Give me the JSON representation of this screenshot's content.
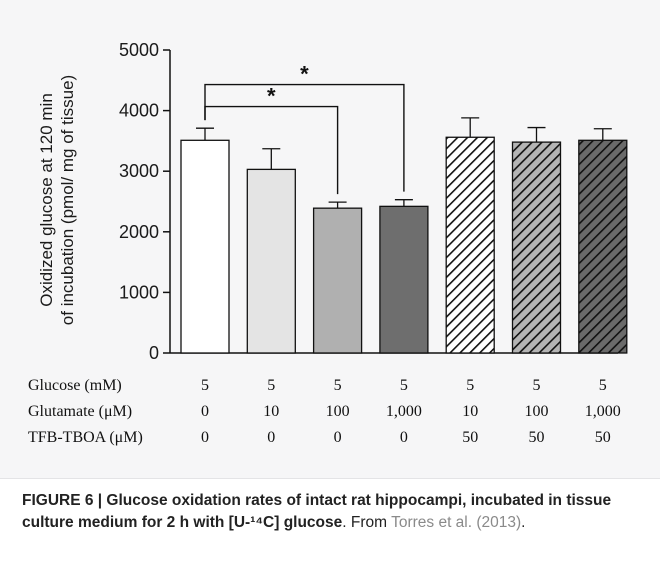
{
  "chart_data": {
    "type": "bar",
    "ylabel_line1": "Oxidized glucose at 120 min",
    "ylabel_line2": "of incubation (pmol/ mg of tissue)",
    "ylim": [
      0,
      5000
    ],
    "yticks": [
      0,
      1000,
      2000,
      3000,
      4000,
      5000
    ],
    "values": [
      3510,
      3030,
      2390,
      2420,
      3560,
      3480,
      3510
    ],
    "errors": [
      200,
      340,
      100,
      110,
      320,
      240,
      190
    ],
    "fills": [
      "#ffffff",
      "#e4e4e4",
      "#b0b0b0",
      "#6e6e6e",
      "hatch-white",
      "hatch-light",
      "hatch-dark"
    ],
    "significance": [
      {
        "from": 0,
        "to": 2,
        "label": "*"
      },
      {
        "from": 0,
        "to": 3,
        "label": "*"
      }
    ],
    "conditions": [
      {
        "label": "Glucose (mM)",
        "values": [
          "5",
          "5",
          "5",
          "5",
          "5",
          "5",
          "5"
        ]
      },
      {
        "label": "Glutamate (μM)",
        "values": [
          "0",
          "10",
          "100",
          "1,000",
          "10",
          "100",
          "1,000"
        ]
      },
      {
        "label": "TFB-TBOA (μM)",
        "values": [
          "0",
          "0",
          "0",
          "0",
          "50",
          "50",
          "50"
        ]
      }
    ]
  },
  "caption": {
    "bold": "FIGURE 6 | Glucose oxidation rates of intact rat hippocampi, incubated in tissue culture medium for 2 h with [U-¹⁴C] glucose",
    "plain": ". From ",
    "link": "Torres et al. (2013)",
    "end": "."
  }
}
